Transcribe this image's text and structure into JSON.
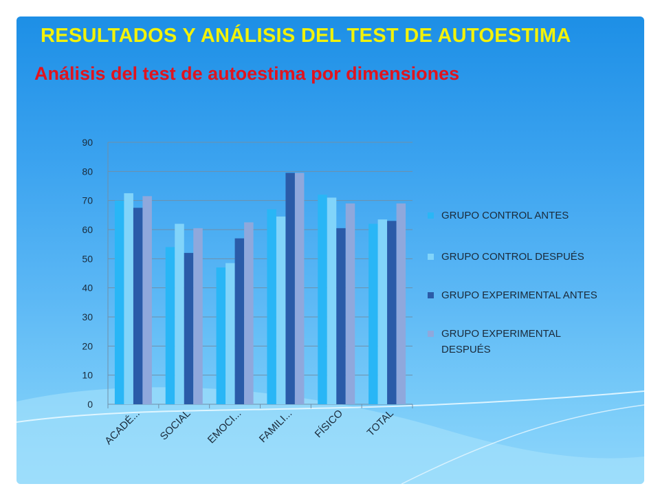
{
  "slide": {
    "title": "RESULTADOS Y ANÁLISIS DEL TEST DE AUTOESTIMA",
    "subtitle": "Análisis del test de autoestima por dimensiones"
  },
  "chart_data": {
    "type": "bar",
    "categories": [
      "ACADÉ...",
      "SOCIAL",
      "EMOCI...",
      "FAMILI...",
      "FÍSICO",
      "TOTAL"
    ],
    "series": [
      {
        "name": "GRUPO CONTROL  ANTES",
        "color": "#29b6f6",
        "values": [
          70,
          54,
          47,
          67,
          72,
          62
        ]
      },
      {
        "name": "GRUPO CONTROL DESPUÉS",
        "color": "#81d4fa",
        "values": [
          72.5,
          62,
          48.5,
          64.5,
          71,
          63.5
        ]
      },
      {
        "name": "GRUPO EXPERIMENTAL ANTES",
        "color": "#2a5ba8",
        "values": [
          67.5,
          52,
          57,
          79.5,
          60.5,
          63
        ]
      },
      {
        "name": "GRUPO EXPERIMENTAL DESPUÉS",
        "color": "#8fa8dc",
        "values": [
          71.5,
          60.5,
          62.5,
          79.5,
          69,
          69
        ]
      }
    ],
    "ylim": [
      0,
      90
    ],
    "yticks": [
      "0",
      "10",
      "20",
      "30",
      "40",
      "50",
      "60",
      "70",
      "80",
      "90"
    ],
    "grid": true,
    "legend_position": "right",
    "xlabel": "",
    "ylabel": ""
  }
}
